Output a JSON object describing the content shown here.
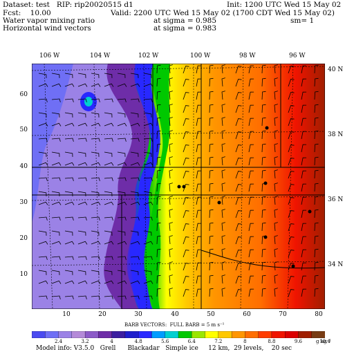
{
  "header": {
    "dataset": "Dataset: test   RIP: rip20020515 d1",
    "init": "Init: 1200 UTC Wed 15 May 02",
    "fcst": "Fcst:    10.00",
    "valid": "Valid: 2200 UTC Wed 15 May 02 (1700 CDT Wed 15 May 02)",
    "field1": "Water vapor mixing ratio",
    "field1_sigma": "at sigma = 0.985",
    "field1_sm": "sm= 1",
    "field2": "Horizontal wind vectors",
    "field2_sigma": "at sigma = 0.983"
  },
  "lon_labels": [
    "106 W",
    "104 W",
    "102 W",
    "100 W",
    "98 W",
    "96 W"
  ],
  "lat_labels": [
    "40 N",
    "38 N",
    "36 N",
    "34 N"
  ],
  "left_axis": [
    "60",
    "50",
    "40",
    "30",
    "20",
    "10"
  ],
  "bottom_axis": [
    "10",
    "20",
    "30",
    "40",
    "50",
    "60",
    "70",
    "80"
  ],
  "barb_caption": "BARB VECTORS:  FULL BARB = 5 m s⁻¹",
  "colorbar": {
    "labels": [
      "2.4",
      "3.2",
      "4",
      "4.8",
      "5.6",
      "6.4",
      "7.2",
      "8",
      "8.8",
      "9.6",
      "10.4"
    ],
    "units": "g kg⁻¹",
    "colors": [
      "#4a4af0",
      "#6f6ff5",
      "#9b82e6",
      "#b48ad8",
      "#8c5ac8",
      "#6e2da8",
      "#3c1ea0",
      "#1e1ecc",
      "#2828ff",
      "#009cff",
      "#00d0d0",
      "#00c800",
      "#9be600",
      "#ffff00",
      "#ffc800",
      "#ff9600",
      "#ff6e00",
      "#ff3c00",
      "#f01400",
      "#dc0000",
      "#a01e00",
      "#783c14"
    ]
  },
  "footer": "Model info: V3.5.0   Grell      Blackadar   Simple ice     12 km,  29 levels,    20 sec"
}
